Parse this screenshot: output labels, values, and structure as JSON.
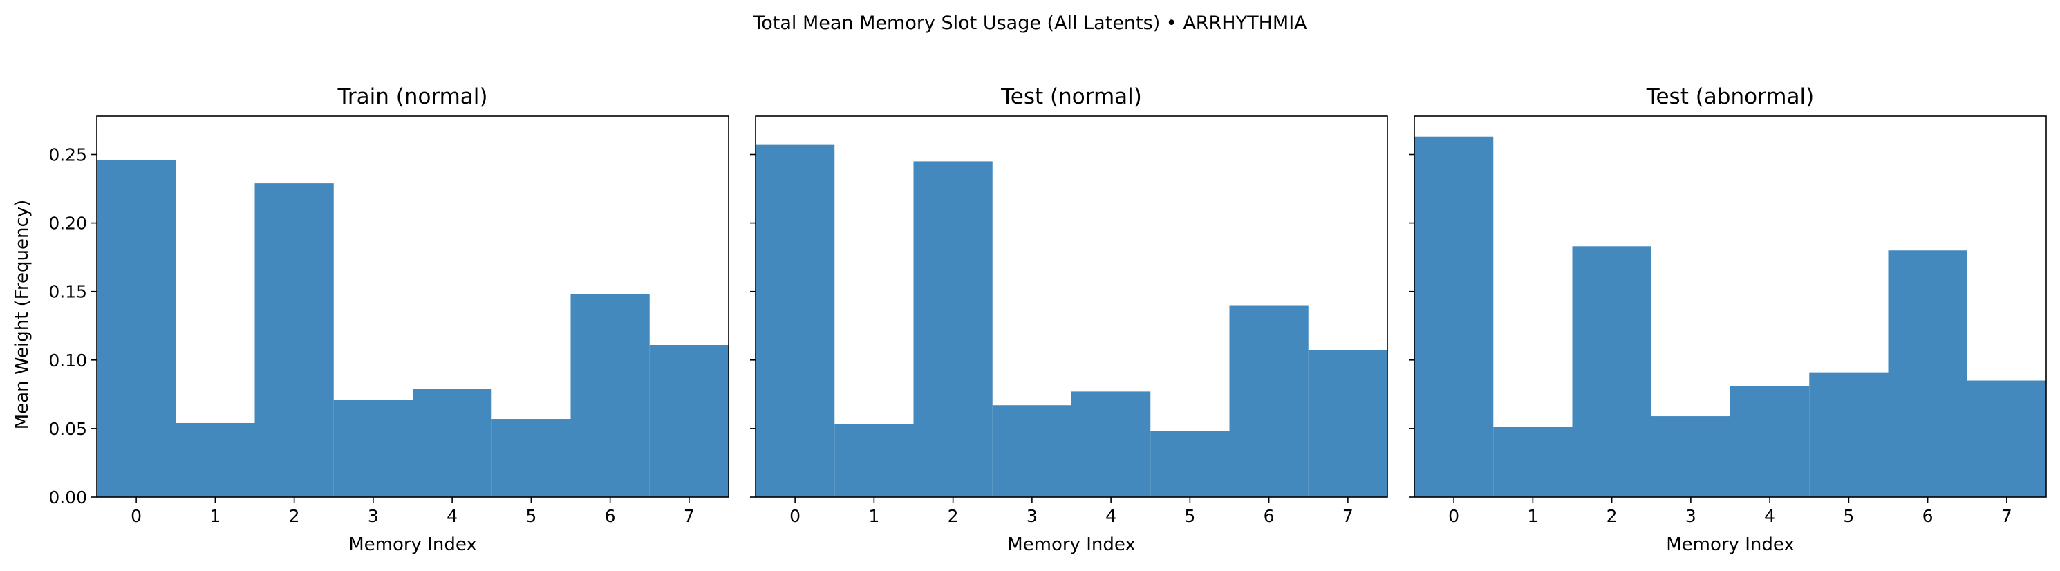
{
  "chart_data": {
    "suptitle": "Total Mean Memory Slot Usage (All Latents) • ARRHYTHMIA",
    "type": "bar",
    "ylabel": "Mean Weight (Frequency)",
    "xlabel": "Memory Index",
    "categories": [
      "0",
      "1",
      "2",
      "3",
      "4",
      "5",
      "6",
      "7"
    ],
    "ylim": [
      0,
      0.278
    ],
    "yticks": [
      "0.00",
      "0.05",
      "0.10",
      "0.15",
      "0.20",
      "0.25"
    ],
    "bar_color": "#4389be",
    "grid": false,
    "sharey": true,
    "panels": [
      {
        "title": "Train (normal)",
        "values": [
          0.246,
          0.054,
          0.229,
          0.071,
          0.079,
          0.057,
          0.148,
          0.111
        ]
      },
      {
        "title": "Test (normal)",
        "values": [
          0.257,
          0.053,
          0.245,
          0.067,
          0.077,
          0.048,
          0.14,
          0.107
        ]
      },
      {
        "title": "Test (abnormal)",
        "values": [
          0.263,
          0.051,
          0.183,
          0.059,
          0.081,
          0.091,
          0.18,
          0.085
        ]
      }
    ]
  }
}
